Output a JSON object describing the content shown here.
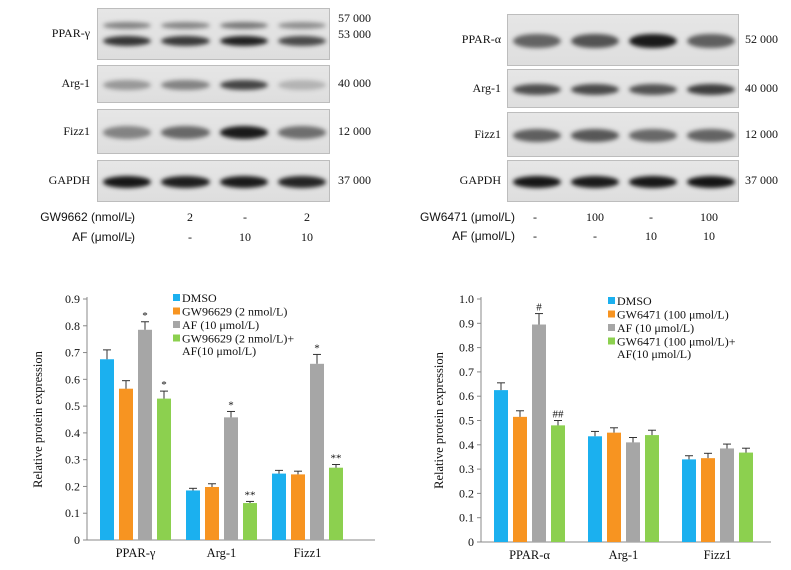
{
  "colors": {
    "dmso": "#1BB0EF",
    "inhibitor": "#F79421",
    "af": "#A6A6A6",
    "combo": "#8CD04F"
  },
  "left": {
    "blots": [
      {
        "label": "PPAR-γ",
        "mw": [
          "57 000",
          "53 000"
        ],
        "intensity": [
          0.82,
          0.8,
          0.92,
          0.72
        ],
        "double": true
      },
      {
        "label": "Arg-1",
        "mw": [
          "40 000"
        ],
        "intensity": [
          0.35,
          0.45,
          0.75,
          0.22
        ],
        "double": false
      },
      {
        "label": "Fizz1",
        "mw": [
          "12 000"
        ],
        "intensity": [
          0.45,
          0.58,
          0.95,
          0.55
        ],
        "double": false
      },
      {
        "label": "GAPDH",
        "mw": [
          "37 000"
        ],
        "intensity": [
          0.97,
          0.93,
          0.95,
          0.9
        ],
        "double": false
      }
    ],
    "treatments": [
      {
        "label": "GW9662 (nmol/L)",
        "values": [
          "-",
          "2",
          "-",
          "2"
        ]
      },
      {
        "label": "AF (μmol/L)",
        "values": [
          "-",
          "-",
          "10",
          "10"
        ]
      }
    ]
  },
  "right": {
    "blots": [
      {
        "label": "PPAR-α",
        "mw": [
          "52 000"
        ],
        "intensity": [
          0.6,
          0.68,
          0.95,
          0.62
        ],
        "double": false
      },
      {
        "label": "Arg-1",
        "mw": [
          "40 000"
        ],
        "intensity": [
          0.7,
          0.72,
          0.68,
          0.78
        ],
        "double": false
      },
      {
        "label": "Fizz1",
        "mw": [
          "12 000"
        ],
        "intensity": [
          0.62,
          0.66,
          0.58,
          0.6
        ],
        "double": false
      },
      {
        "label": "GAPDH",
        "mw": [
          "37 000"
        ],
        "intensity": [
          0.97,
          0.95,
          0.96,
          0.98
        ],
        "double": false
      }
    ],
    "treatments": [
      {
        "label": "GW6471 (μmol/L)",
        "values": [
          "-",
          "100",
          "-",
          "100"
        ]
      },
      {
        "label": "AF (μmol/L)",
        "values": [
          "-",
          "-",
          "10",
          "10"
        ]
      }
    ]
  },
  "chart_data": [
    {
      "type": "bar",
      "title": "",
      "xlabel": "",
      "ylabel": "Relative protein expression",
      "ylim": [
        0,
        0.9
      ],
      "yticks": [
        "0",
        "0.1",
        "0.2",
        "0.3",
        "0.4",
        "0.5",
        "0.6",
        "0.7",
        "0.8",
        "0.9"
      ],
      "categories": [
        "PPAR-γ",
        "Arg-1",
        "Fizz1"
      ],
      "legend_position": "top-right",
      "series": [
        {
          "name": "DMSO",
          "values": [
            0.675,
            0.185,
            0.248
          ],
          "errors": [
            0.035,
            0.008,
            0.012
          ],
          "marks": [
            "",
            "",
            ""
          ]
        },
        {
          "name": "GW96629 (2 nmol/L)",
          "values": [
            0.565,
            0.198,
            0.245
          ],
          "errors": [
            0.03,
            0.012,
            0.012
          ],
          "marks": [
            "",
            "",
            ""
          ]
        },
        {
          "name": "AF (10 μmol/L)",
          "values": [
            0.785,
            0.458,
            0.658
          ],
          "errors": [
            0.03,
            0.022,
            0.035
          ],
          "marks": [
            "*",
            "*",
            "*"
          ]
        },
        {
          "name": "GW96629 (2 nmol/L)+\nAF(10 μmol/L)",
          "values": [
            0.528,
            0.138,
            0.27
          ],
          "errors": [
            0.028,
            0.006,
            0.012
          ],
          "marks": [
            "*",
            "**",
            "**"
          ]
        }
      ]
    },
    {
      "type": "bar",
      "title": "",
      "xlabel": "",
      "ylabel": "Relative protein expression",
      "ylim": [
        0,
        1.0
      ],
      "yticks": [
        "0",
        "0.1",
        "0.2",
        "0.3",
        "0.4",
        "0.5",
        "0.6",
        "0.7",
        "0.8",
        "0.9",
        "1.0"
      ],
      "categories": [
        "PPAR-α",
        "Arg-1",
        "Fizz1"
      ],
      "legend_position": "top-right",
      "series": [
        {
          "name": "DMSO",
          "values": [
            0.625,
            0.435,
            0.34
          ],
          "errors": [
            0.03,
            0.02,
            0.015
          ],
          "marks": [
            "",
            "",
            ""
          ]
        },
        {
          "name": "GW6471 (100 μmol/L)",
          "values": [
            0.515,
            0.45,
            0.345
          ],
          "errors": [
            0.025,
            0.02,
            0.02
          ],
          "marks": [
            "",
            "",
            ""
          ]
        },
        {
          "name": "AF (10 μmol/L)",
          "values": [
            0.895,
            0.41,
            0.385
          ],
          "errors": [
            0.045,
            0.02,
            0.018
          ],
          "marks": [
            "#",
            "",
            ""
          ]
        },
        {
          "name": "GW6471 (100 μmol/L)+\nAF(10 μmol/L)",
          "values": [
            0.48,
            0.44,
            0.368
          ],
          "errors": [
            0.02,
            0.02,
            0.018
          ],
          "marks": [
            "##",
            "",
            ""
          ]
        }
      ]
    }
  ]
}
